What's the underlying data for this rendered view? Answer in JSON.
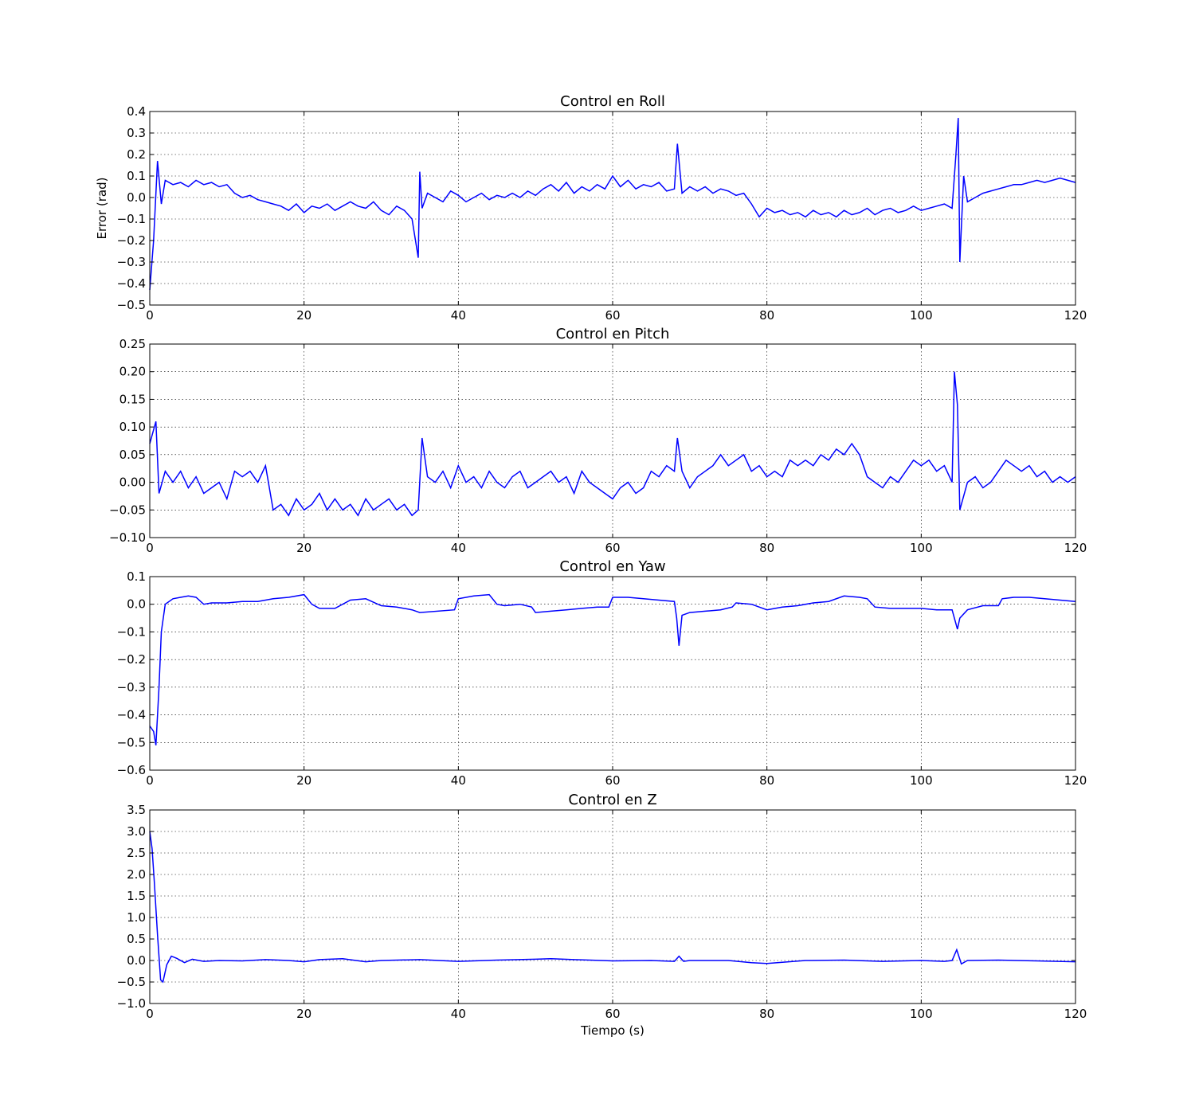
{
  "chart_data": [
    {
      "type": "line",
      "title": "Control en Roll",
      "xlabel": "",
      "ylabel": "Error (rad)",
      "xlim": [
        0,
        120
      ],
      "ylim": [
        -0.5,
        0.4
      ],
      "xticks": [
        "0",
        "20",
        "40",
        "60",
        "80",
        "100",
        "120"
      ],
      "yticks": [
        "−0.5",
        "−0.4",
        "−0.3",
        "−0.2",
        "−0.1",
        "0.0",
        "0.1",
        "0.2",
        "0.3",
        "0.4"
      ],
      "grid": true,
      "color": "#0000ff",
      "x": [
        0,
        0.5,
        1,
        1.5,
        2,
        3,
        4,
        5,
        6,
        7,
        8,
        9,
        10,
        11,
        12,
        13,
        14,
        15,
        16,
        17,
        18,
        19,
        20,
        21,
        22,
        23,
        24,
        25,
        26,
        27,
        28,
        29,
        30,
        31,
        32,
        33,
        34,
        34.8,
        35,
        35.3,
        36,
        37,
        38,
        39,
        40,
        41,
        42,
        43,
        44,
        45,
        46,
        47,
        48,
        49,
        50,
        51,
        52,
        53,
        54,
        55,
        56,
        57,
        58,
        59,
        60,
        61,
        62,
        63,
        64,
        65,
        66,
        67,
        68,
        68.4,
        69,
        70,
        71,
        72,
        73,
        74,
        75,
        76,
        77,
        78,
        79,
        80,
        81,
        82,
        83,
        84,
        85,
        86,
        87,
        88,
        89,
        90,
        91,
        92,
        93,
        94,
        95,
        96,
        97,
        98,
        99,
        100,
        101,
        102,
        103,
        104,
        104.5,
        104.8,
        105,
        105.5,
        106,
        107,
        108,
        109,
        110,
        111,
        112,
        113,
        114,
        115,
        116,
        117,
        118,
        119,
        120
      ],
      "y": [
        -0.43,
        -0.2,
        0.17,
        -0.03,
        0.08,
        0.06,
        0.07,
        0.05,
        0.08,
        0.06,
        0.07,
        0.05,
        0.06,
        0.02,
        0.0,
        0.01,
        -0.01,
        -0.02,
        -0.03,
        -0.04,
        -0.06,
        -0.03,
        -0.07,
        -0.04,
        -0.05,
        -0.03,
        -0.06,
        -0.04,
        -0.02,
        -0.04,
        -0.05,
        -0.02,
        -0.06,
        -0.08,
        -0.04,
        -0.06,
        -0.1,
        -0.28,
        0.12,
        -0.05,
        0.02,
        0.0,
        -0.02,
        0.03,
        0.01,
        -0.02,
        0.0,
        0.02,
        -0.01,
        0.01,
        0.0,
        0.02,
        0.0,
        0.03,
        0.01,
        0.04,
        0.06,
        0.03,
        0.07,
        0.02,
        0.05,
        0.03,
        0.06,
        0.04,
        0.1,
        0.05,
        0.08,
        0.04,
        0.06,
        0.05,
        0.07,
        0.03,
        0.04,
        0.25,
        0.02,
        0.05,
        0.03,
        0.05,
        0.02,
        0.04,
        0.03,
        0.01,
        0.02,
        -0.03,
        -0.09,
        -0.05,
        -0.07,
        -0.06,
        -0.08,
        -0.07,
        -0.09,
        -0.06,
        -0.08,
        -0.07,
        -0.09,
        -0.06,
        -0.08,
        -0.07,
        -0.05,
        -0.08,
        -0.06,
        -0.05,
        -0.07,
        -0.06,
        -0.04,
        -0.06,
        -0.05,
        -0.04,
        -0.03,
        -0.05,
        0.2,
        0.37,
        -0.3,
        0.1,
        -0.02,
        0.0,
        0.02,
        0.03,
        0.04,
        0.05,
        0.06,
        0.06,
        0.07,
        0.08,
        0.07,
        0.08,
        0.09,
        0.08,
        0.07
      ]
    },
    {
      "type": "line",
      "title": "Control en Pitch",
      "xlabel": "",
      "ylabel": "",
      "xlim": [
        0,
        120
      ],
      "ylim": [
        -0.1,
        0.25
      ],
      "xticks": [
        "0",
        "20",
        "40",
        "60",
        "80",
        "100",
        "120"
      ],
      "yticks": [
        "−0.10",
        "−0.05",
        "0.00",
        "0.05",
        "0.10",
        "0.15",
        "0.20",
        "0.25"
      ],
      "grid": true,
      "color": "#0000ff",
      "x": [
        0,
        0.8,
        1.2,
        2,
        3,
        4,
        5,
        6,
        7,
        8,
        9,
        10,
        11,
        12,
        13,
        14,
        15,
        16,
        17,
        18,
        19,
        20,
        21,
        22,
        23,
        24,
        25,
        26,
        27,
        28,
        29,
        30,
        31,
        32,
        33,
        34,
        34.8,
        35.3,
        36,
        37,
        38,
        39,
        40,
        41,
        42,
        43,
        44,
        45,
        46,
        47,
        48,
        49,
        50,
        51,
        52,
        53,
        54,
        55,
        56,
        57,
        58,
        59,
        60,
        61,
        62,
        63,
        64,
        65,
        66,
        67,
        68,
        68.4,
        69,
        70,
        71,
        72,
        73,
        74,
        75,
        76,
        77,
        78,
        79,
        80,
        81,
        82,
        83,
        84,
        85,
        86,
        87,
        88,
        89,
        90,
        91,
        92,
        93,
        94,
        95,
        96,
        97,
        98,
        99,
        100,
        101,
        102,
        103,
        104,
        104.3,
        104.7,
        105,
        106,
        107,
        108,
        109,
        110,
        111,
        112,
        113,
        114,
        115,
        116,
        117,
        118,
        119,
        120
      ],
      "y": [
        0.07,
        0.11,
        -0.02,
        0.02,
        0.0,
        0.02,
        -0.01,
        0.01,
        -0.02,
        -0.01,
        0.0,
        -0.03,
        0.02,
        0.01,
        0.02,
        0.0,
        0.03,
        -0.05,
        -0.04,
        -0.06,
        -0.03,
        -0.05,
        -0.04,
        -0.02,
        -0.05,
        -0.03,
        -0.05,
        -0.04,
        -0.06,
        -0.03,
        -0.05,
        -0.04,
        -0.03,
        -0.05,
        -0.04,
        -0.06,
        -0.05,
        0.08,
        0.01,
        0.0,
        0.02,
        -0.01,
        0.03,
        0.0,
        0.01,
        -0.01,
        0.02,
        0.0,
        -0.01,
        0.01,
        0.02,
        -0.01,
        0.0,
        0.01,
        0.02,
        0.0,
        0.01,
        -0.02,
        0.02,
        0.0,
        -0.01,
        -0.02,
        -0.03,
        -0.01,
        0.0,
        -0.02,
        -0.01,
        0.02,
        0.01,
        0.03,
        0.02,
        0.08,
        0.02,
        -0.01,
        0.01,
        0.02,
        0.03,
        0.05,
        0.03,
        0.04,
        0.05,
        0.02,
        0.03,
        0.01,
        0.02,
        0.01,
        0.04,
        0.03,
        0.04,
        0.03,
        0.05,
        0.04,
        0.06,
        0.05,
        0.07,
        0.05,
        0.01,
        0.0,
        -0.01,
        0.01,
        0.0,
        0.02,
        0.04,
        0.03,
        0.04,
        0.02,
        0.03,
        0.0,
        0.2,
        0.14,
        -0.05,
        0.0,
        0.01,
        -0.01,
        0.0,
        0.02,
        0.04,
        0.03,
        0.02,
        0.03,
        0.01,
        0.02,
        0.0,
        0.01,
        0.0,
        0.01
      ]
    },
    {
      "type": "line",
      "title": "Control en Yaw",
      "xlabel": "",
      "ylabel": "",
      "xlim": [
        0,
        120
      ],
      "ylim": [
        -0.6,
        0.1
      ],
      "xticks": [
        "0",
        "20",
        "40",
        "60",
        "80",
        "100",
        "120"
      ],
      "yticks": [
        "−0.6",
        "−0.5",
        "−0.4",
        "−0.3",
        "−0.2",
        "−0.1",
        "0.0",
        "0.1"
      ],
      "grid": true,
      "color": "#0000ff",
      "x": [
        0,
        0.5,
        0.8,
        1.2,
        1.5,
        2,
        3,
        4,
        5,
        6,
        7,
        8,
        10,
        12,
        14,
        16,
        18,
        20,
        21,
        22,
        24,
        26,
        28,
        30,
        32,
        34,
        35,
        39.5,
        40,
        42,
        44,
        45,
        46,
        48,
        49.5,
        50,
        52,
        54,
        56,
        58,
        59.5,
        60,
        62,
        64,
        66,
        68,
        68.3,
        68.6,
        69,
        70,
        72,
        74,
        75.5,
        76,
        78,
        80,
        82,
        84,
        86,
        88,
        90,
        92,
        93,
        94,
        96,
        98,
        100,
        102,
        104,
        104.4,
        104.7,
        105,
        106,
        108,
        110,
        110.5,
        112,
        114,
        116,
        118,
        120
      ],
      "y": [
        -0.44,
        -0.46,
        -0.51,
        -0.3,
        -0.1,
        0.0,
        0.02,
        0.025,
        0.03,
        0.025,
        0.0,
        0.005,
        0.005,
        0.01,
        0.01,
        0.02,
        0.025,
        0.035,
        0.0,
        -0.015,
        -0.015,
        0.015,
        0.02,
        -0.005,
        -0.01,
        -0.02,
        -0.03,
        -0.02,
        0.02,
        0.03,
        0.035,
        0.0,
        -0.005,
        0.0,
        -0.01,
        -0.03,
        -0.025,
        -0.02,
        -0.015,
        -0.01,
        -0.01,
        0.025,
        0.025,
        0.02,
        0.015,
        0.01,
        -0.05,
        -0.15,
        -0.04,
        -0.03,
        -0.025,
        -0.02,
        -0.01,
        0.005,
        0.0,
        -0.02,
        -0.01,
        -0.005,
        0.005,
        0.01,
        0.03,
        0.025,
        0.02,
        -0.01,
        -0.015,
        -0.015,
        -0.015,
        -0.02,
        -0.02,
        -0.06,
        -0.09,
        -0.05,
        -0.02,
        -0.005,
        -0.005,
        0.02,
        0.025,
        0.025,
        0.02,
        0.015,
        0.01
      ]
    },
    {
      "type": "line",
      "title": "Control en Z",
      "xlabel": "Tiempo (s)",
      "ylabel": "",
      "xlim": [
        0,
        120
      ],
      "ylim": [
        -1.0,
        3.5
      ],
      "xticks": [
        "0",
        "20",
        "40",
        "60",
        "80",
        "100",
        "120"
      ],
      "yticks": [
        "−1.0",
        "−0.5",
        "0.0",
        "0.5",
        "1.0",
        "1.5",
        "2.0",
        "2.5",
        "3.0",
        "3.5"
      ],
      "grid": true,
      "color": "#0000ff",
      "x": [
        0,
        0.3,
        0.6,
        1,
        1.4,
        1.7,
        2.2,
        2.8,
        3.5,
        4.5,
        5.5,
        7,
        9,
        12,
        15,
        18,
        20,
        22,
        25,
        28,
        30,
        35,
        40,
        45,
        50,
        52,
        55,
        60,
        65,
        68,
        68.6,
        69.2,
        70,
        75,
        78,
        80,
        85,
        90,
        95,
        100,
        103,
        104,
        104.6,
        105.2,
        106,
        110,
        115,
        120
      ],
      "y": [
        3.0,
        2.6,
        1.8,
        0.6,
        -0.45,
        -0.5,
        -0.1,
        0.1,
        0.05,
        -0.05,
        0.03,
        -0.02,
        0.0,
        -0.01,
        0.02,
        0.0,
        -0.03,
        0.02,
        0.04,
        -0.03,
        0.0,
        0.02,
        -0.02,
        0.01,
        0.03,
        0.04,
        0.02,
        -0.01,
        0.0,
        -0.02,
        0.1,
        -0.02,
        0.0,
        0.0,
        -0.05,
        -0.07,
        0.0,
        0.01,
        -0.02,
        0.0,
        -0.02,
        0.0,
        0.25,
        -0.08,
        0.0,
        0.01,
        -0.01,
        -0.03
      ]
    }
  ]
}
